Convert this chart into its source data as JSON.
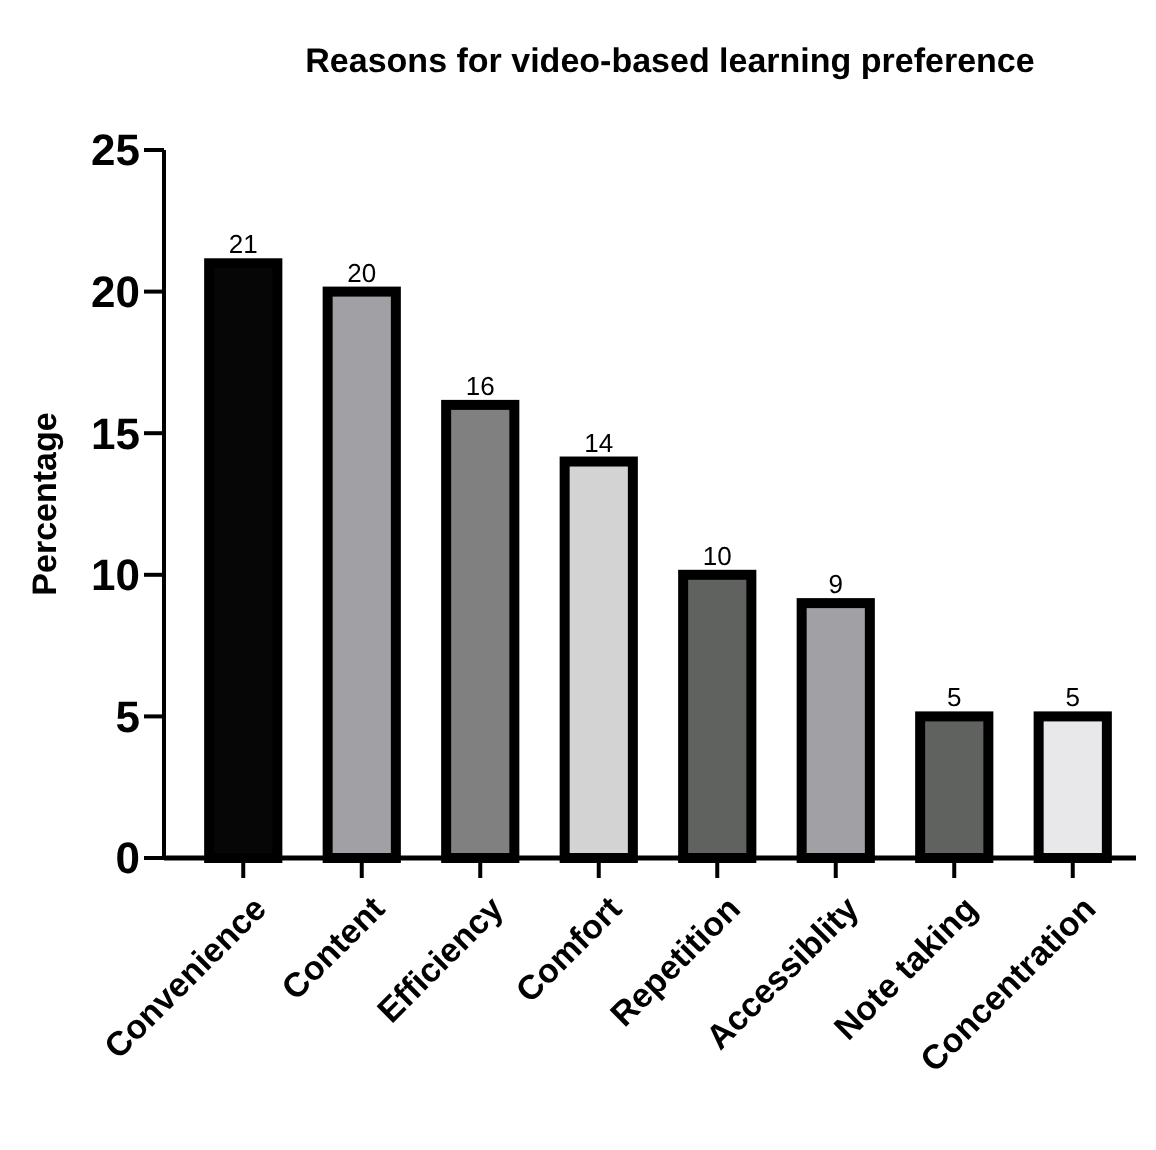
{
  "chart_data": {
    "type": "bar",
    "title": "Reasons for video-based learning preference",
    "ylabel": "Percentage",
    "categories": [
      "Convenience",
      "Content",
      "Efficiency",
      "Comfort",
      "Repetition",
      "Accessiblity",
      "Note taking",
      "Concentration"
    ],
    "values": [
      21,
      20,
      16,
      14,
      10,
      9,
      5,
      5
    ],
    "colors": [
      "#060606",
      "#a1a0a5",
      "#808080",
      "#d3d3d3",
      "#606260",
      "#a1a0a5",
      "#606260",
      "#e8e8ea"
    ],
    "ylim": [
      0,
      25
    ],
    "yticks": [
      0,
      5,
      10,
      15,
      20,
      25
    ],
    "data_labels": true,
    "grid": false
  }
}
